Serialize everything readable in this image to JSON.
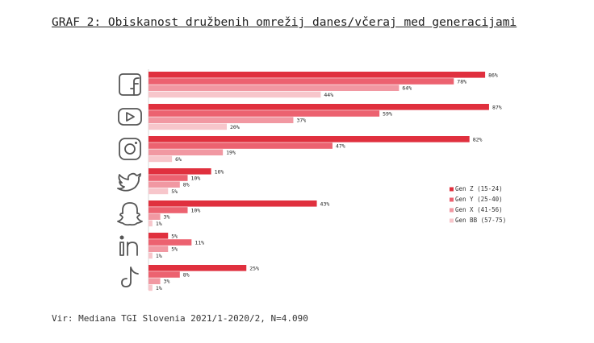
{
  "chart_data": {
    "type": "bar",
    "orientation": "horizontal",
    "title": "GRAF 2: Obiskanost družbenih omrežij danes/včeraj med generacijami",
    "source": "Vir: Mediana TGI Slovenia 2021/1-2020/2, N=4.090",
    "categories": [
      "Facebook",
      "YouTube",
      "Instagram",
      "Twitter",
      "Snapchat",
      "LinkedIn",
      "TikTok"
    ],
    "category_icons": [
      "facebook-icon",
      "youtube-icon",
      "instagram-icon",
      "twitter-icon",
      "snapchat-icon",
      "linkedin-icon",
      "tiktok-icon"
    ],
    "series": [
      {
        "name": "Gen Z (15-24)",
        "color": "#e0303e",
        "values": [
          86,
          87,
          82,
          16,
          43,
          5,
          25
        ],
        "labels": [
          "86%",
          "87%",
          "82%",
          "16%",
          "43%",
          "5%",
          "25%"
        ]
      },
      {
        "name": "Gen Y (25-40)",
        "color": "#ec6270",
        "values": [
          78,
          59,
          47,
          10,
          10,
          11,
          8
        ],
        "labels": [
          "78%",
          "59%",
          "47%",
          "10%",
          "10%",
          "11%",
          "8%"
        ]
      },
      {
        "name": "Gen X (41-56)",
        "color": "#f198a2",
        "values": [
          64,
          37,
          19,
          8,
          3,
          5,
          3
        ],
        "labels": [
          "64%",
          "37%",
          "19%",
          "8%",
          "3%",
          "5%",
          "3%"
        ]
      },
      {
        "name": "Gen BB (57-75)",
        "color": "#f7c6cb",
        "values": [
          44,
          20,
          6,
          5,
          1,
          1,
          1
        ],
        "labels": [
          "44%",
          "20%",
          "6%",
          "5%",
          "1%",
          "1%",
          "1%"
        ]
      }
    ],
    "xlim": [
      0,
      100
    ],
    "legend": "right",
    "grid": false
  }
}
